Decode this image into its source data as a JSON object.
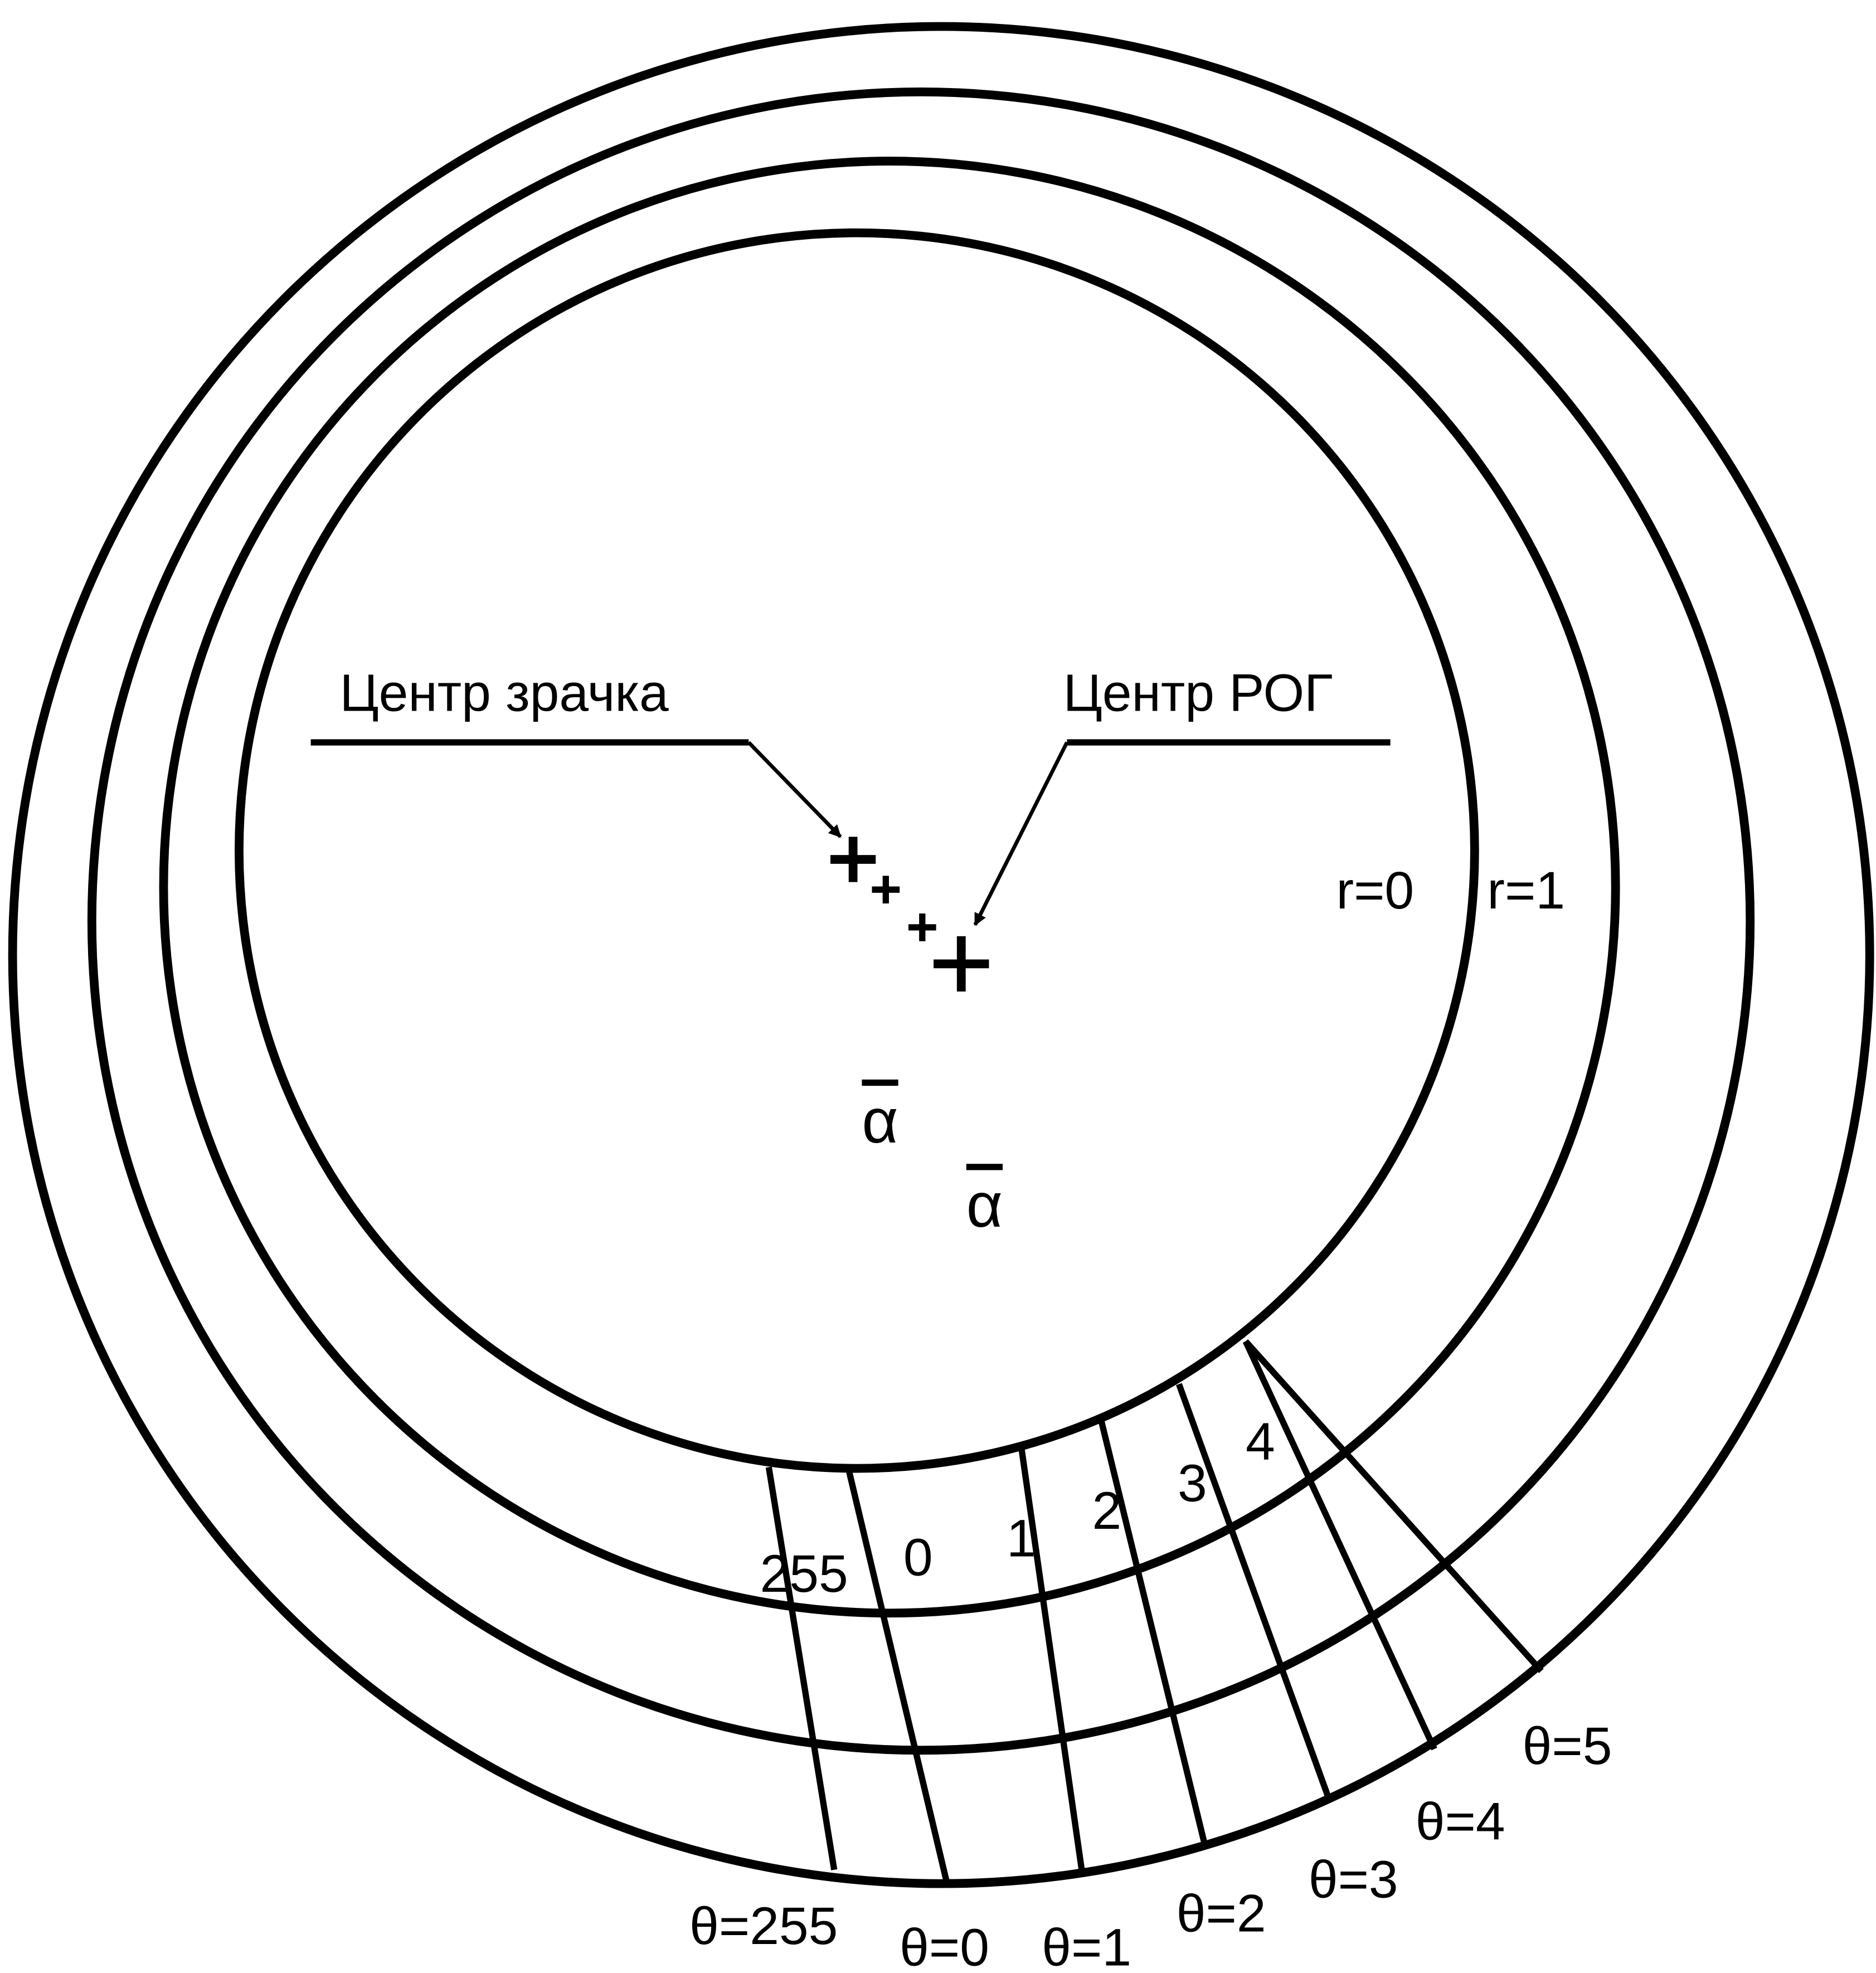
{
  "labels": {
    "pupil_center": "Центр зрачка",
    "cornea_center": "Центр РОГ"
  },
  "rings": [
    "r=0",
    "r=1"
  ],
  "alpha": [
    "α",
    "α"
  ],
  "sectors": [
    "255",
    "0",
    "1",
    "2",
    "3",
    "4"
  ],
  "angles": [
    "θ=255",
    "θ=0",
    "θ=1",
    "θ=2",
    "θ=3",
    "θ=4",
    "θ=5"
  ]
}
